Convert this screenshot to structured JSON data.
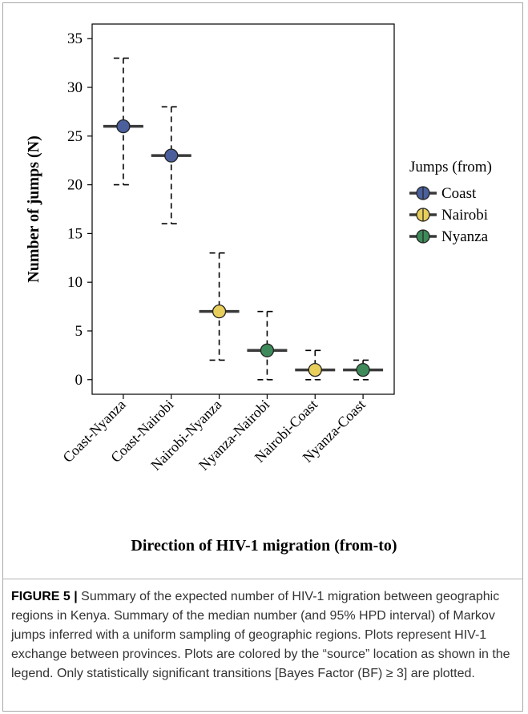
{
  "chart_data": {
    "type": "scatter",
    "ylabel": "Number of jumps (N)",
    "xlabel": "Direction of HIV-1 migration (from-to)",
    "ylim": [
      -1.5,
      36.5
    ],
    "yticks": [
      0,
      5,
      10,
      15,
      20,
      25,
      30,
      35
    ],
    "categories": [
      "Coast-Nyanza",
      "Coast-Nairobi",
      "Nairobi-Nyanza",
      "Nyanza-Nairobi",
      "Nairobi-Coast",
      "Nyanza-Coast"
    ],
    "median": [
      26,
      23,
      7,
      3,
      1,
      1
    ],
    "hpd_low": [
      20,
      16,
      2,
      0,
      0,
      0
    ],
    "hpd_high": [
      33,
      28,
      13,
      7,
      3,
      2
    ],
    "source": [
      "Coast",
      "Coast",
      "Nairobi",
      "Nyanza",
      "Nairobi",
      "Nyanza"
    ],
    "legend": {
      "title": "Jumps (from)",
      "placement": "right",
      "entries": [
        {
          "name": "Coast",
          "color": "#4a5f9c"
        },
        {
          "name": "Nairobi",
          "color": "#e8cf5c"
        },
        {
          "name": "Nyanza",
          "color": "#3f8a5a"
        }
      ]
    },
    "grid": false
  },
  "caption": {
    "label": "FIGURE 5 |",
    "text": " Summary of the expected number of HIV-1 migration between geographic regions in Kenya. Summary of the median number (and 95% HPD interval) of Markov jumps inferred with a uniform sampling of geographic regions. Plots represent HIV-1 exchange between provinces. Plots are colored by the “source” location as shown in the legend. Only statistically significant transitions [Bayes Factor (BF) ≥ 3] are plotted."
  }
}
